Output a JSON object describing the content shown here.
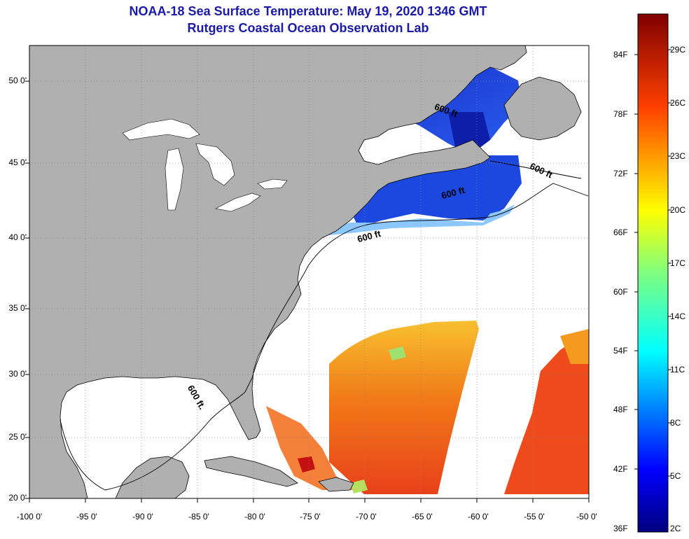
{
  "title": "NOAA-18 Sea Surface Temperature:  May 19, 2020 1346 GMT",
  "subtitle": "Rutgers Coastal Ocean Observation Lab",
  "colors": {
    "land": "#b0b0b0",
    "ocean_nodata": "#ffffff",
    "coast": "#000000",
    "title": "#1a1aa6"
  },
  "lat_labels": [
    "50 0'",
    "45 0'",
    "40 0'",
    "35 0'",
    "30 0'",
    "25 0'",
    "20 0'"
  ],
  "lon_labels": [
    "-100 0'",
    "-95 0'",
    "-90 0'",
    "-85 0'",
    "-80 0'",
    "-75 0'",
    "-70 0'",
    "-65 0'",
    "-60 0'",
    "-55 0'",
    "-50 0'"
  ],
  "colorbar": {
    "fahrenheit": [
      "84F",
      "78F",
      "72F",
      "66F",
      "60F",
      "54F",
      "48F",
      "42F",
      "36F"
    ],
    "celsius": [
      "29C",
      "26C",
      "23C",
      "20C",
      "17C",
      "14C",
      "11C",
      "8C",
      "5C",
      "2C"
    ]
  },
  "contour_label": "600 ft",
  "contours": [
    {
      "name": "contour-label-gulf",
      "text": "600 ft."
    },
    {
      "name": "contour-label-midatlantic",
      "text": "600 ft"
    },
    {
      "name": "contour-label-georges",
      "text": "600 ft"
    },
    {
      "name": "contour-label-newfoundland",
      "text": "600 ft"
    },
    {
      "name": "contour-label-gulf-st-lawrence",
      "text": "600 ft"
    }
  ]
}
